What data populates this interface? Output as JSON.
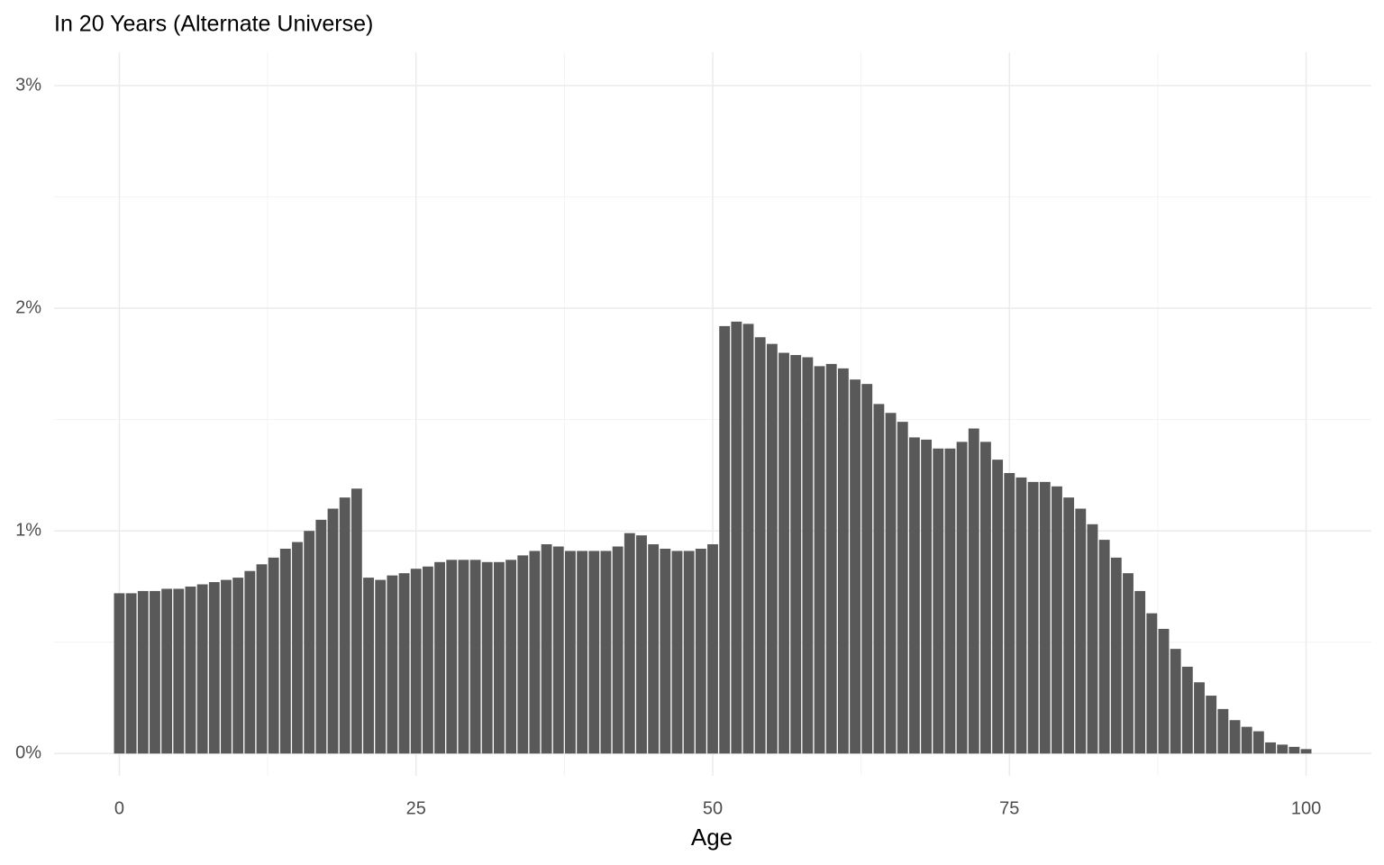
{
  "chart_data": {
    "type": "bar",
    "title": "In 20 Years (Alternate Universe)",
    "x_label": "Age",
    "x": [
      0,
      1,
      2,
      3,
      4,
      5,
      6,
      7,
      8,
      9,
      10,
      11,
      12,
      13,
      14,
      15,
      16,
      17,
      18,
      19,
      20,
      21,
      22,
      23,
      24,
      25,
      26,
      27,
      28,
      29,
      30,
      31,
      32,
      33,
      34,
      35,
      36,
      37,
      38,
      39,
      40,
      41,
      42,
      43,
      44,
      45,
      46,
      47,
      48,
      49,
      50,
      51,
      52,
      53,
      54,
      55,
      56,
      57,
      58,
      59,
      60,
      61,
      62,
      63,
      64,
      65,
      66,
      67,
      68,
      69,
      70,
      71,
      72,
      73,
      74,
      75,
      76,
      77,
      78,
      79,
      80,
      81,
      82,
      83,
      84,
      85,
      86,
      87,
      88,
      89,
      90,
      91,
      92,
      93,
      94,
      95,
      96,
      97,
      98,
      99,
      100
    ],
    "values": [
      0.72,
      0.72,
      0.73,
      0.73,
      0.74,
      0.74,
      0.75,
      0.76,
      0.77,
      0.78,
      0.79,
      0.82,
      0.85,
      0.88,
      0.92,
      0.95,
      1.0,
      1.05,
      1.1,
      1.15,
      1.19,
      0.79,
      0.78,
      0.8,
      0.81,
      0.83,
      0.84,
      0.86,
      0.87,
      0.87,
      0.87,
      0.86,
      0.86,
      0.87,
      0.89,
      0.91,
      0.94,
      0.93,
      0.91,
      0.91,
      0.91,
      0.91,
      0.93,
      0.99,
      0.98,
      0.94,
      0.92,
      0.91,
      0.91,
      0.92,
      0.94,
      1.92,
      1.94,
      1.93,
      1.87,
      1.84,
      1.8,
      1.79,
      1.78,
      1.74,
      1.75,
      1.73,
      1.68,
      1.66,
      1.57,
      1.53,
      1.49,
      1.42,
      1.41,
      1.37,
      1.37,
      1.4,
      1.46,
      1.4,
      1.32,
      1.26,
      1.24,
      1.22,
      1.22,
      1.2,
      1.15,
      1.1,
      1.03,
      0.96,
      0.88,
      0.81,
      0.73,
      0.63,
      0.56,
      0.47,
      0.39,
      0.32,
      0.26,
      0.2,
      0.15,
      0.12,
      0.1,
      0.05,
      0.04,
      0.03,
      0.02
    ],
    "color": "#595959",
    "xlim": [
      -5.5,
      105.5
    ],
    "xticks": [
      0,
      25,
      50,
      75,
      100
    ],
    "ylim": [
      -0.1,
      3.15
    ],
    "yticks": [
      {
        "value": 0,
        "label": "0%"
      },
      {
        "value": 1,
        "label": "1%"
      },
      {
        "value": 2,
        "label": "2%"
      },
      {
        "value": 3,
        "label": "3%"
      }
    ],
    "grid": true
  }
}
